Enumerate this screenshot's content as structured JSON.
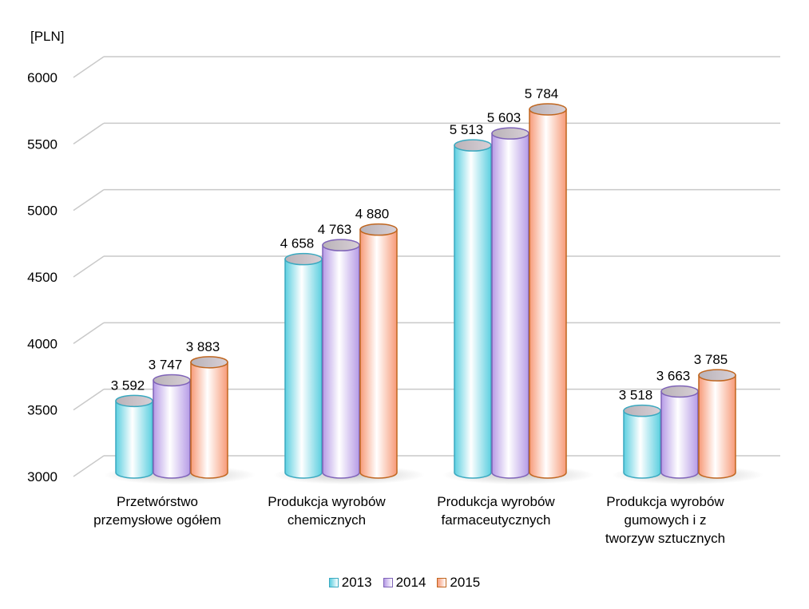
{
  "chart_data": {
    "type": "bar",
    "unit_label": "[PLN]",
    "categories": [
      [
        "Przetwórstwo",
        "przemysłowe ogółem"
      ],
      [
        "Produkcja wyrobów",
        "chemicznych"
      ],
      [
        "Produkcja wyrobów",
        "farmaceutycznych"
      ],
      [
        "Produkcja wyrobów",
        "gumowych i z",
        "tworzyw sztucznych"
      ]
    ],
    "series": [
      {
        "name": "2013",
        "values": [
          3592,
          4658,
          5513,
          3518
        ],
        "labels": [
          "3 592",
          "4 658",
          "5 513",
          "3 518"
        ],
        "color": "#5ccfe0",
        "edge": "#3aa9c0"
      },
      {
        "name": "2014",
        "values": [
          3747,
          4763,
          5603,
          3663
        ],
        "labels": [
          "3 747",
          "4 763",
          "5 603",
          "3 663"
        ],
        "color": "#b69be6",
        "edge": "#7f63b8"
      },
      {
        "name": "2015",
        "values": [
          3883,
          4880,
          5784,
          3785
        ],
        "labels": [
          "3 883",
          "4 880",
          "5 784",
          "3 785"
        ],
        "color": "#f79a78",
        "edge": "#c0661f"
      }
    ],
    "yticks": [
      "3000",
      "3500",
      "4000",
      "4500",
      "5000",
      "5500",
      "6000"
    ],
    "ylim": [
      3000,
      6000
    ],
    "grid": true,
    "legend_position": "bottom"
  }
}
